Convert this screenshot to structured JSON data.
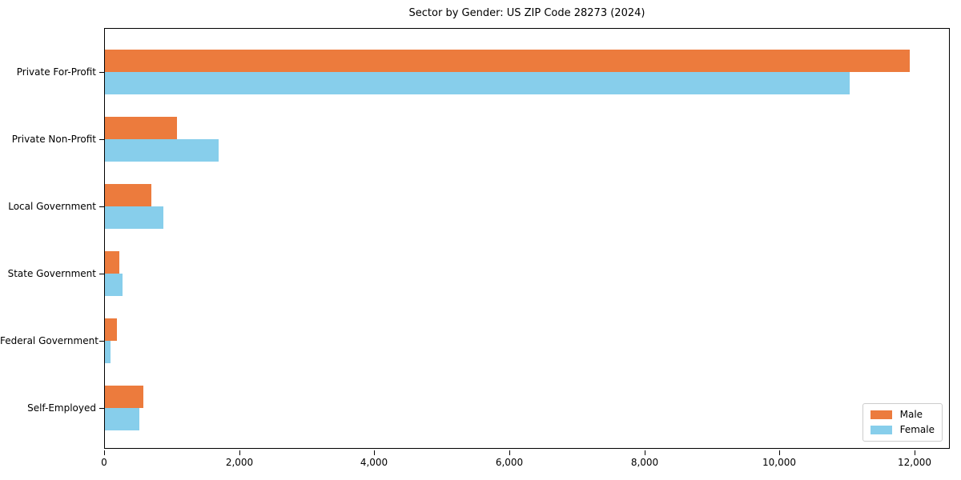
{
  "chart_data": {
    "type": "bar",
    "orientation": "horizontal",
    "title": "Sector by Gender: US ZIP Code 28273 (2024)",
    "categories": [
      "Private For-Profit",
      "Private Non-Profit",
      "Local Government",
      "State Government",
      "Federal Government",
      "Self-Employed"
    ],
    "series": [
      {
        "name": "Male",
        "color": "#ec7b3d",
        "values": [
          11920,
          1070,
          690,
          210,
          180,
          570
        ]
      },
      {
        "name": "Female",
        "color": "#87ceeb",
        "values": [
          11030,
          1680,
          870,
          260,
          80,
          510
        ]
      }
    ],
    "xlim": [
      0,
      12520
    ],
    "xticks": [
      0,
      2000,
      4000,
      6000,
      8000,
      10000,
      12000
    ],
    "xtick_labels": [
      "0",
      "2,000",
      "4,000",
      "6,000",
      "8,000",
      "10,000",
      "12,000"
    ],
    "xlabel": "",
    "ylabel": "",
    "grid": false,
    "legend": {
      "position": "lower-right",
      "entries": [
        "Male",
        "Female"
      ]
    },
    "colors": {
      "background": "#ffffff",
      "axis": "#000000",
      "text": "#000000",
      "legend_border": "#cccccc"
    }
  }
}
